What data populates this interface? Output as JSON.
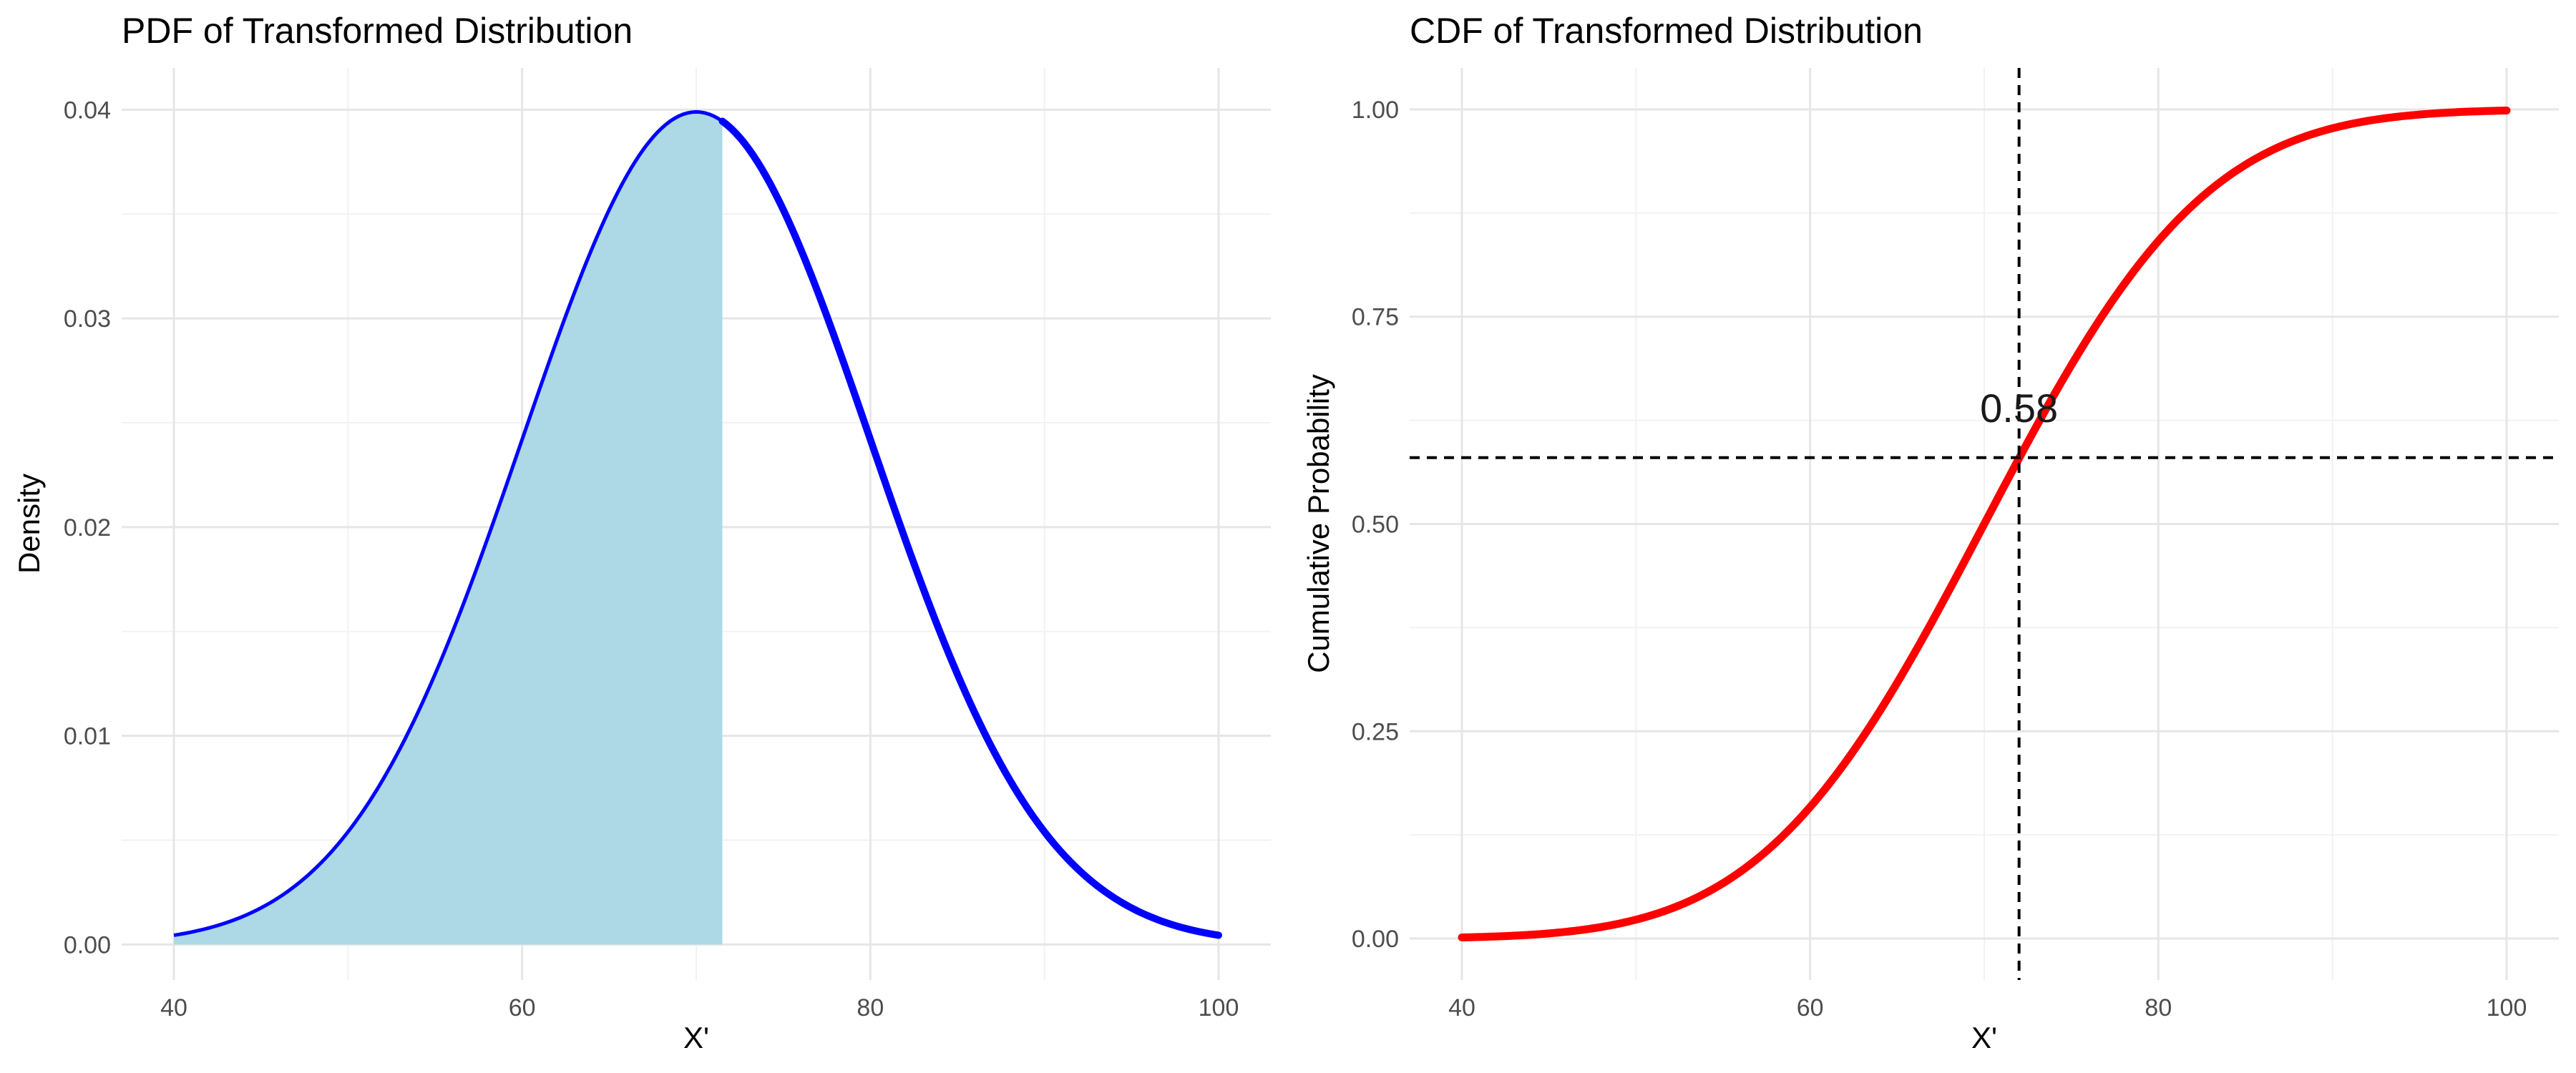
{
  "chart_data": [
    {
      "type": "area",
      "title": "PDF of Transformed Distribution",
      "xlabel": "X'",
      "ylabel": "Density",
      "xlim": [
        37,
        103
      ],
      "ylim": [
        -0.0017,
        0.042
      ],
      "xticks": [
        40,
        60,
        80,
        100
      ],
      "xtick_labels": [
        "40",
        "60",
        "80",
        "100"
      ],
      "yticks": [
        0,
        0.01,
        0.02,
        0.03,
        0.04
      ],
      "ytick_labels": [
        "0.00",
        "0.01",
        "0.02",
        "0.03",
        "0.04"
      ],
      "grid": true,
      "distribution": "normal",
      "mean": 70,
      "sd": 10,
      "x_range": [
        40,
        100
      ],
      "shaded_region": [
        40,
        71.5
      ],
      "x": [
        40,
        42.5,
        45,
        47.5,
        50,
        52.5,
        55,
        57.5,
        60,
        62.5,
        65,
        67.5,
        70,
        72.5,
        75,
        77.5,
        80,
        82.5,
        85,
        87.5,
        90,
        92.5,
        95,
        97.5,
        100
      ],
      "y": [
        0.00044,
        0.00091,
        0.00175,
        0.00318,
        0.0054,
        0.00863,
        0.01295,
        0.01826,
        0.0242,
        0.03011,
        0.03521,
        0.03867,
        0.03989,
        0.03867,
        0.03521,
        0.03011,
        0.0242,
        0.01826,
        0.01295,
        0.00863,
        0.0054,
        0.00318,
        0.00175,
        0.00091,
        0.00044
      ],
      "fill_color": "#add8e6",
      "line_color": "#0000ff"
    },
    {
      "type": "line",
      "title": "CDF of Transformed Distribution",
      "xlabel": "X'",
      "ylabel": "Cumulative Probability",
      "xlim": [
        37,
        103
      ],
      "ylim": [
        -0.05,
        1.05
      ],
      "xticks": [
        40,
        60,
        80,
        100
      ],
      "xtick_labels": [
        "40",
        "60",
        "80",
        "100"
      ],
      "yticks": [
        0,
        0.25,
        0.5,
        0.75,
        1.0
      ],
      "ytick_labels": [
        "0.00",
        "0.25",
        "0.50",
        "0.75",
        "1.00"
      ],
      "grid": true,
      "x": [
        40,
        42.5,
        45,
        47.5,
        50,
        52.5,
        55,
        57.5,
        60,
        62.5,
        65,
        67.5,
        70,
        72.5,
        75,
        77.5,
        80,
        82.5,
        85,
        87.5,
        90,
        92.5,
        95,
        97.5,
        100
      ],
      "y": [
        0.0013,
        0.0026,
        0.0062,
        0.0122,
        0.0228,
        0.0401,
        0.0668,
        0.1056,
        0.1587,
        0.2266,
        0.3085,
        0.4013,
        0.5,
        0.5987,
        0.6915,
        0.7734,
        0.8413,
        0.8944,
        0.9332,
        0.9599,
        0.9772,
        0.9878,
        0.9938,
        0.9974,
        0.9987
      ],
      "line_color": "#ff0000",
      "vline_x": 72,
      "hline_y": 0.58,
      "annotation": {
        "text": "0.58",
        "x": 72,
        "y": 0.64
      }
    }
  ]
}
